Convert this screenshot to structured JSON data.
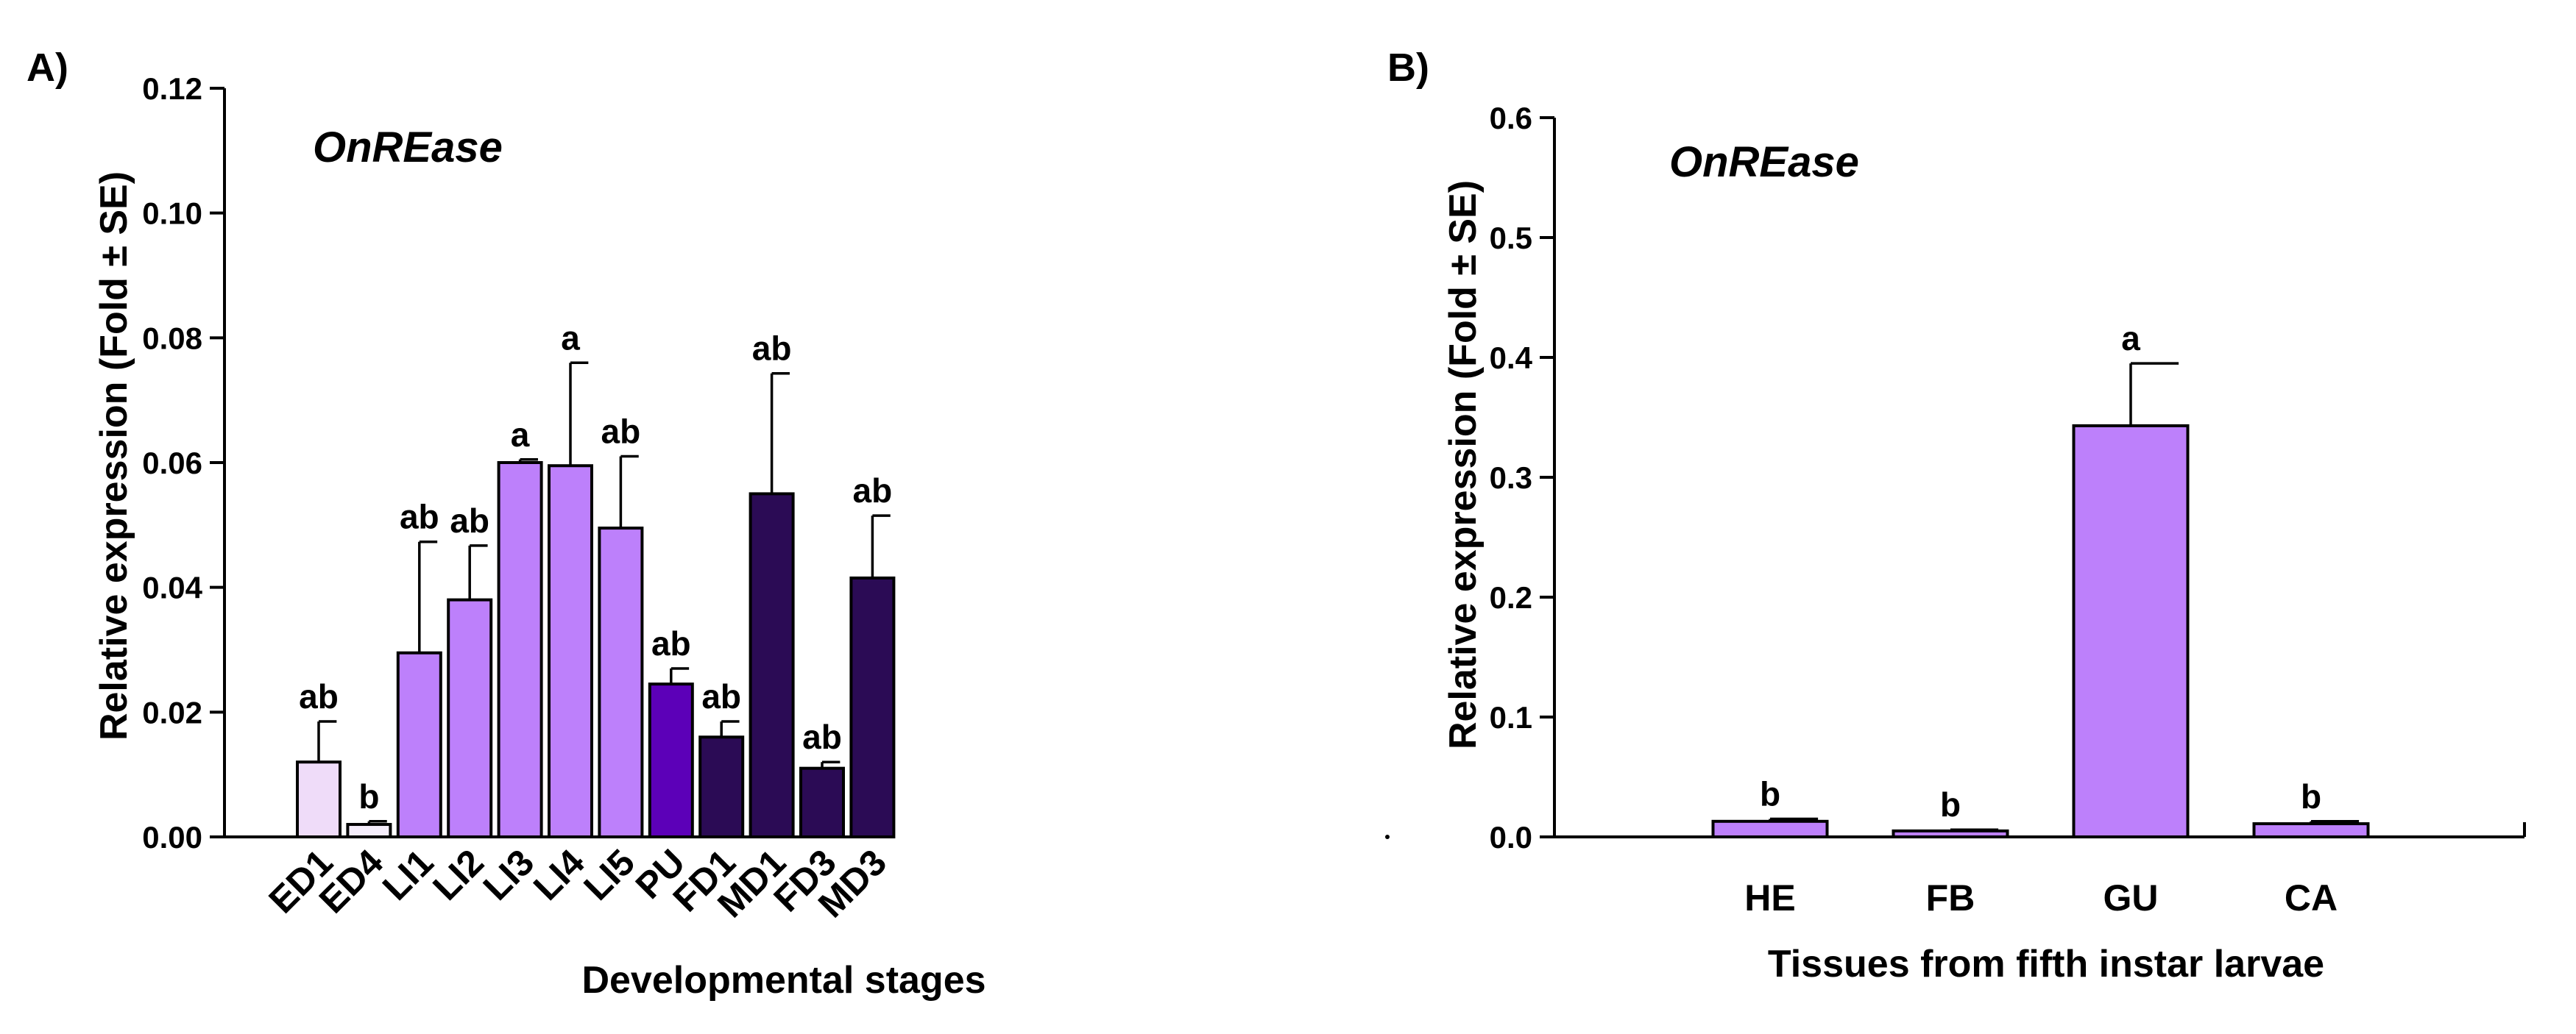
{
  "chart_data": [
    {
      "panel_label": "A)",
      "type": "bar",
      "title": "OnREase",
      "xlabel": "Developmental stages",
      "ylabel": "Relative expression (Fold ± SE)",
      "ylim": [
        0,
        0.12
      ],
      "yticks": [
        "0.00",
        "0.02",
        "0.04",
        "0.06",
        "0.08",
        "0.10",
        "0.12"
      ],
      "categories": [
        "ED1",
        "ED4",
        "LI1",
        "LI2",
        "LI3",
        "LI4",
        "LI5",
        "PU",
        "FD1",
        "MD1",
        "FD3",
        "MD3"
      ],
      "values": [
        0.012,
        0.002,
        0.0295,
        0.038,
        0.06,
        0.0595,
        0.0495,
        0.0245,
        0.016,
        0.055,
        0.011,
        0.0415
      ],
      "errors": [
        0.0065,
        0.0005,
        0.0178,
        0.0087,
        0.0005,
        0.0165,
        0.0115,
        0.0025,
        0.0025,
        0.0193,
        0.001,
        0.01
      ],
      "significance": [
        "ab",
        "b",
        "ab",
        "ab",
        "a",
        "a",
        "ab",
        "ab",
        "ab",
        "ab",
        "ab",
        "ab"
      ],
      "colors": [
        "#efdcf9",
        "#f6eefc",
        "#bd80fb",
        "#bd80fb",
        "#bd80fb",
        "#bd80fb",
        "#bd80fb",
        "#5c00b8",
        "#2b0b55",
        "#2b0b55",
        "#2b0b55",
        "#2b0b55"
      ]
    },
    {
      "panel_label": "B)",
      "type": "bar",
      "title": "OnREase",
      "xlabel": "Tissues from fifth instar larvae",
      "ylabel": "Relative expression (Fold ± SE)",
      "ylim": [
        0,
        0.6
      ],
      "yticks": [
        "0.0",
        "0.1",
        "0.2",
        "0.3",
        "0.4",
        "0.5",
        "0.6"
      ],
      "categories": [
        "HE",
        "FB",
        "GU",
        "CA"
      ],
      "values": [
        0.013,
        0.005,
        0.343,
        0.011
      ],
      "errors": [
        0.002,
        0.001,
        0.052,
        0.002
      ],
      "significance": [
        "b",
        "b",
        "a",
        "b"
      ],
      "colors": [
        "#bd80fb",
        "#bd80fb",
        "#bd80fb",
        "#bd80fb"
      ]
    }
  ]
}
